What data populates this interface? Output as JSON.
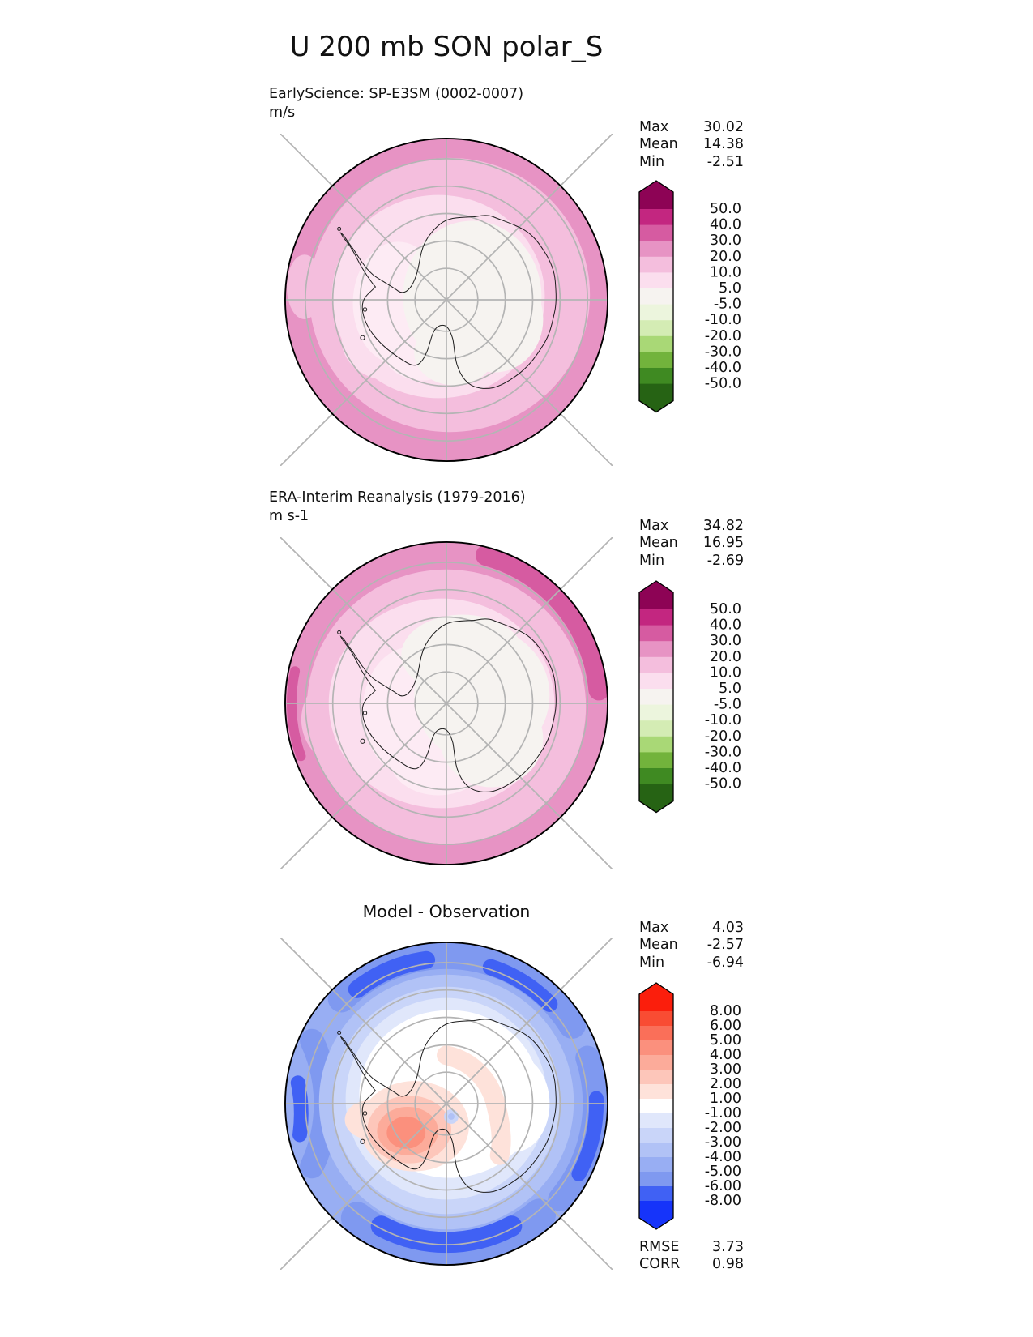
{
  "main": {
    "title": "U 200 mb SON polar_S"
  },
  "panels": [
    {
      "name": "model",
      "subtitle": "EarlyScience: SP-E3SM (0002-0007)",
      "units": "m/s",
      "stats": [
        {
          "label": "Max",
          "value": "30.02"
        },
        {
          "label": "Mean",
          "value": "14.38"
        },
        {
          "label": "Min",
          "value": "-2.51"
        }
      ],
      "colorbar": {
        "tick_labels": [
          "50.0",
          "40.0",
          "30.0",
          "20.0",
          "10.0",
          "5.0",
          "-5.0",
          "-10.0",
          "-20.0",
          "-30.0",
          "-40.0",
          "-50.0"
        ],
        "band_colors": [
          "#8d0355",
          "#c32680",
          "#d65ba1",
          "#e793c4",
          "#f4bedd",
          "#fbdeee",
          "#f6f3f0",
          "#ecf5dd",
          "#d4ecb4",
          "#a9d876",
          "#72b33c",
          "#3f8a22",
          "#266314"
        ]
      }
    },
    {
      "name": "observation",
      "subtitle": "ERA-Interim Reanalysis (1979-2016)",
      "units": "m s-1",
      "stats": [
        {
          "label": "Max",
          "value": "34.82"
        },
        {
          "label": "Mean",
          "value": "16.95"
        },
        {
          "label": "Min",
          "value": "-2.69"
        }
      ],
      "colorbar": {
        "tick_labels": [
          "50.0",
          "40.0",
          "30.0",
          "20.0",
          "10.0",
          "5.0",
          "-5.0",
          "-10.0",
          "-20.0",
          "-30.0",
          "-40.0",
          "-50.0"
        ],
        "band_colors": [
          "#8d0355",
          "#c32680",
          "#d65ba1",
          "#e793c4",
          "#f4bedd",
          "#fbdeee",
          "#f6f3f0",
          "#ecf5dd",
          "#d4ecb4",
          "#a9d876",
          "#72b33c",
          "#3f8a22",
          "#266314"
        ]
      }
    },
    {
      "name": "difference",
      "title": "Model - Observation",
      "stats": [
        {
          "label": "Max",
          "value": "4.03"
        },
        {
          "label": "Mean",
          "value": "-2.57"
        },
        {
          "label": "Min",
          "value": "-6.94"
        }
      ],
      "colorbar": {
        "tick_labels": [
          "8.00",
          "6.00",
          "5.00",
          "4.00",
          "3.00",
          "2.00",
          "1.00",
          "-1.00",
          "-2.00",
          "-3.00",
          "-4.00",
          "-5.00",
          "-6.00",
          "-8.00"
        ],
        "band_colors": [
          "#fb1e0c",
          "#f94c33",
          "#fa6f59",
          "#fb907d",
          "#fcab9a",
          "#fdc6ba",
          "#fee2da",
          "#ffffff",
          "#e0e7fb",
          "#c9d5f9",
          "#b1c2f6",
          "#98aef3",
          "#7f99f0",
          "#4061f4",
          "#1634fa"
        ]
      },
      "metrics": [
        {
          "label": "RMSE",
          "value": "3.73"
        },
        {
          "label": "CORR",
          "value": "0.98"
        }
      ]
    }
  ],
  "chart_data": {
    "type": "heatmap",
    "subtype": "south-polar stereographic filled-contour maps (3-panel model vs obs diagnostic)",
    "variable": "U",
    "level": "200 mb",
    "season": "SON",
    "region": "polar_S",
    "title": "U 200 mb SON polar_S",
    "panels": [
      {
        "title": "EarlyScience: SP-E3SM (0002-0007)",
        "units": "m/s",
        "contour_levels": [
          -50,
          -40,
          -30,
          -20,
          -10,
          -5,
          5,
          10,
          20,
          30,
          40,
          50
        ],
        "colormap": "pink-to-green diverging (PiYG-like), pink = positive wind",
        "stats": {
          "max": 30.02,
          "mean": 14.38,
          "min": -2.51
        },
        "pattern": "Concentric pink rings: 20-30 m/s at outer edge (~50S), decreasing inward through 10-20 and 5-10 bands to near 0 (white) over the pole and East Antarctica"
      },
      {
        "title": "ERA-Interim Reanalysis (1979-2016)",
        "units": "m s-1",
        "contour_levels": [
          -50,
          -40,
          -30,
          -20,
          -10,
          -5,
          5,
          10,
          20,
          30,
          40,
          50
        ],
        "colormap": "pink-to-green diverging (PiYG-like), pink = positive wind",
        "stats": {
          "max": 34.82,
          "mean": 16.95,
          "min": -2.69
        },
        "pattern": "Same ring structure but stronger: a 30-40 m/s dark-pink wedge along the outer edge between 1 and 3 o'clock; white low-wind core over the pole"
      },
      {
        "title": "Model - Observation",
        "units": "m/s",
        "contour_levels": [
          -8,
          -6,
          -5,
          -4,
          -3,
          -2,
          -1,
          1,
          2,
          3,
          4,
          5,
          6,
          8
        ],
        "colormap": "red-white-blue diverging, blue = model weaker than obs",
        "stats": {
          "max": 4.03,
          "mean": -2.57,
          "min": -6.94
        },
        "metrics": {
          "rmse": 3.73,
          "corr": 0.98
        },
        "pattern": "Blue annulus (-3 to -7 m/s bias) around 50-65S with darkest lenses at top and bottom rims; near-zero (white) over the continent; positive +2 to +4 m/s red blob over West Antarctica just off the pole and a faint +1 to +2 arc curving from top-center to the right of the pole"
      }
    ],
    "gridlines": {
      "parallel_circles": 5,
      "meridian_spokes_deg": 45,
      "color": "gray"
    }
  }
}
